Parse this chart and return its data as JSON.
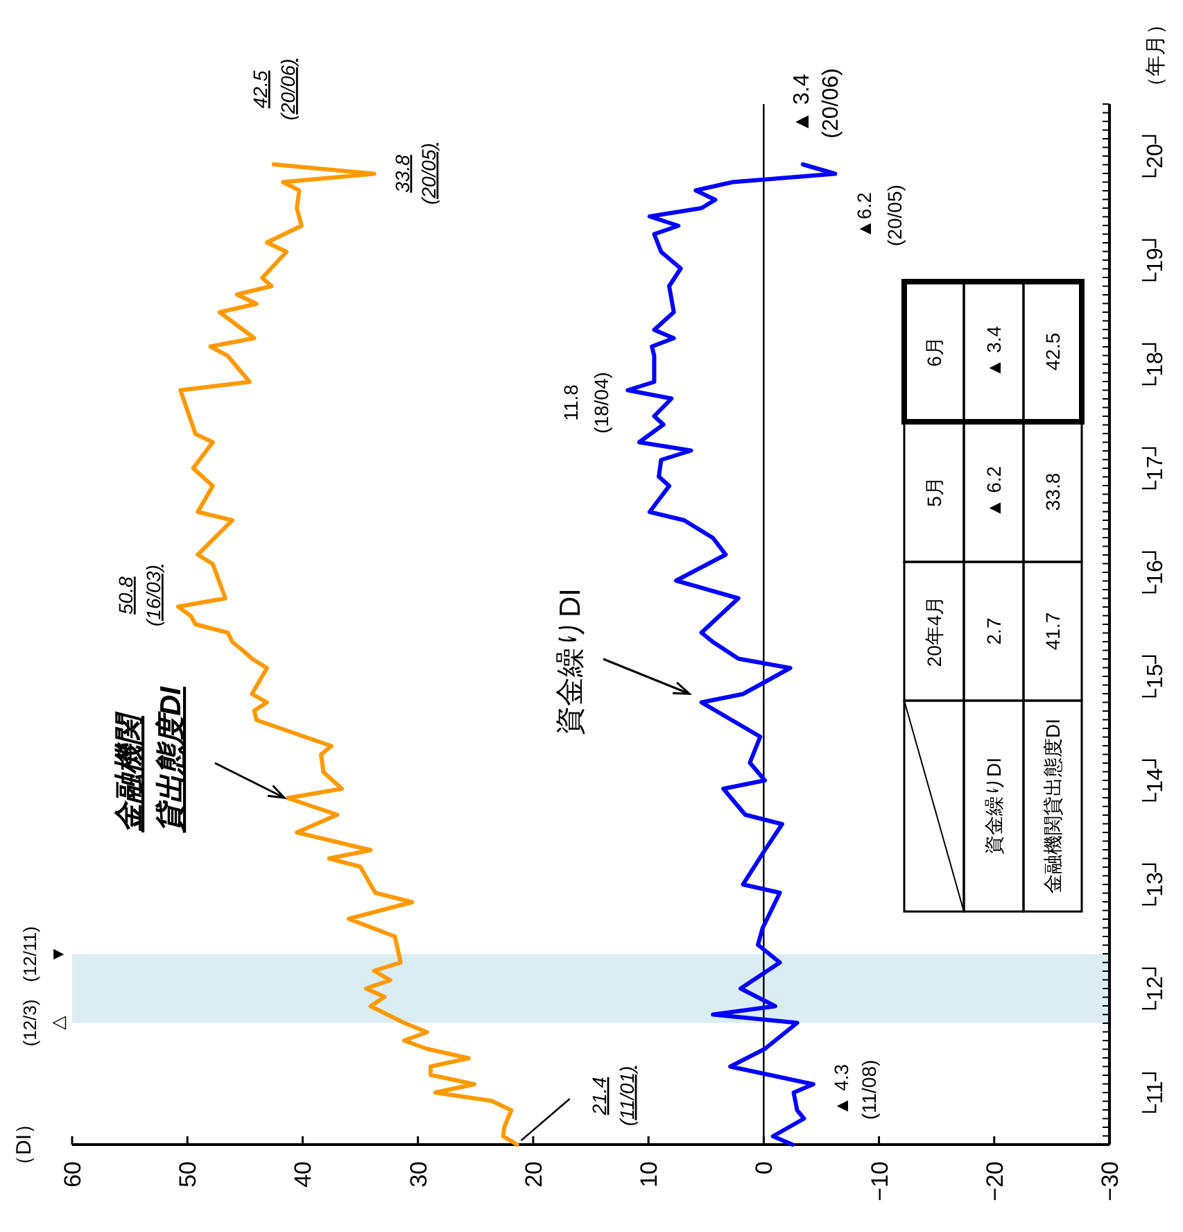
{
  "chart_data": {
    "type": "line",
    "ylabel": "（年月）",
    "xlim": [
      60,
      -30
    ],
    "xticks": [
      60,
      50,
      40,
      30,
      20,
      10,
      0,
      -10,
      -20,
      -30
    ],
    "ylim": [
      11,
      21
    ],
    "yticks": [
      {
        "value": 11.5,
        "label": "└11┘"
      },
      {
        "value": 12.5,
        "label": "└12┘"
      },
      {
        "value": 13.5,
        "label": "└13┘"
      },
      {
        "value": 14.5,
        "label": "└14┘"
      },
      {
        "value": 15.5,
        "label": "└15┘"
      },
      {
        "value": 16.5,
        "label": "└16┘"
      },
      {
        "value": 17.5,
        "label": "└17┘"
      },
      {
        "value": 18.5,
        "label": "└18┘"
      },
      {
        "value": 19.5,
        "label": "└19┘"
      },
      {
        "value": 20.5,
        "label": "└20┘"
      }
    ],
    "series": [
      {
        "name": "金融機関貸出態度DI",
        "color": "#ff9900",
        "x": [
          21.4,
          22.6,
          22.5,
          21.9,
          23.6,
          28.5,
          25.1,
          28.9,
          28.9,
          25.6,
          29.2,
          31.2,
          29.2,
          31.2,
          34.1,
          32.9,
          34.5,
          32.4,
          33.8,
          31.5,
          32.0,
          36.0,
          30.5,
          33.7,
          35.0,
          37.7,
          34.1,
          40.5,
          37.0,
          41.3,
          36.6,
          38.2,
          38.4,
          37.5,
          44.0,
          44.2,
          43.1,
          44.4,
          43.1,
          44.4,
          45.2,
          46.1,
          46.5,
          49.3,
          49.7,
          50.8,
          46.7,
          47.8,
          49.1,
          46.1,
          49.1,
          47.8,
          49.5,
          47.8,
          49.3,
          50.6,
          44.6,
          46.5,
          48.0,
          44.2,
          47.2,
          44.0,
          45.7,
          42.7,
          43.5,
          41.4,
          43.1,
          40.1,
          40.5,
          40.3,
          41.7,
          33.8,
          42.5
        ],
        "values": [
          11,
          11.08,
          11.17,
          11.33,
          11.42,
          11.5,
          11.58,
          11.67,
          11.75,
          11.83,
          11.92,
          12,
          12.08,
          12.17,
          12.33,
          12.42,
          12.5,
          12.58,
          12.67,
          12.75,
          13,
          13.17,
          13.33,
          13.42,
          13.67,
          13.75,
          13.83,
          14,
          14.17,
          14.33,
          14.42,
          14.58,
          14.75,
          14.83,
          15.08,
          15.17,
          15.25,
          15.33,
          15.58,
          15.67,
          15.75,
          15.83,
          15.92,
          16,
          16.08,
          16.17,
          16.25,
          16.58,
          16.67,
          17,
          17.08,
          17.33,
          17.5,
          17.75,
          17.83,
          18.25,
          18.33,
          18.58,
          18.67,
          18.75,
          19,
          19.08,
          19.17,
          19.25,
          19.33,
          19.58,
          19.67,
          19.83,
          20,
          20.17,
          20.25,
          20.33,
          20.42
        ]
      },
      {
        "name": "資金繰りDI",
        "color": "#0000ff",
        "x": [
          -2.5,
          -0.8,
          -3.5,
          -2.9,
          -2.6,
          -4.3,
          2.9,
          -0.1,
          -2.9,
          4.4,
          -1.0,
          2.0,
          -1.4,
          0.5,
          0.1,
          -1.4,
          1.8,
          -0.1,
          -1.6,
          1.6,
          3.5,
          -0.1,
          1.2,
          0.3,
          5.4,
          1.8,
          -2.3,
          2.2,
          4.4,
          5.4,
          2.2,
          7.6,
          3.3,
          4.4,
          6.9,
          9.9,
          8.2,
          9.1,
          8.9,
          6.3,
          10.8,
          8.7,
          9.5,
          8.0,
          11.8,
          9.5,
          9.5,
          9.7,
          7.8,
          9.5,
          7.8,
          8.2,
          7.2,
          8.9,
          9.5,
          7.4,
          9.9,
          5.4,
          4.2,
          5.9,
          2.7,
          -6.2,
          -3.4
        ],
        "values": [
          11,
          11.08,
          11.25,
          11.33,
          11.5,
          11.58,
          11.75,
          11.92,
          12.17,
          12.25,
          12.33,
          12.5,
          12.75,
          12.92,
          13.08,
          13.42,
          13.5,
          13.83,
          14.08,
          14.17,
          14.42,
          14.5,
          14.67,
          14.92,
          15.25,
          15.33,
          15.58,
          15.67,
          15.83,
          15.92,
          16.25,
          16.42,
          16.67,
          16.83,
          17,
          17.08,
          17.33,
          17.42,
          17.58,
          17.67,
          17.75,
          17.92,
          18,
          18.17,
          18.25,
          18.33,
          18.58,
          18.67,
          18.75,
          18.83,
          19,
          19.25,
          19.42,
          19.58,
          19.75,
          19.83,
          19.92,
          20,
          20.08,
          20.17,
          20.25,
          20.33,
          20.42
        ]
      }
    ],
    "ref_lines": [
      {
        "axis": "x",
        "value": 0,
        "color": "#000000"
      }
    ],
    "bands": [
      {
        "axis": "y",
        "from": 12.17,
        "to": 12.83,
        "color": "#daedf3"
      }
    ],
    "annotations": [
      {
        "text": "21.4\n(11/01)",
        "x": 21.4,
        "y": 11
      },
      {
        "text": "50.8\n(16/03)",
        "x": 50.8,
        "y": 16.17
      },
      {
        "text": "33.8\n(20/05)",
        "x": 33.8,
        "y": 20.33
      },
      {
        "text": "42.5\n(20/06)",
        "x": 42.5,
        "y": 20.42
      },
      {
        "text": "▲ 4.3\n(11/08)",
        "x": -4.3,
        "y": 11.58
      },
      {
        "text": "11.8\n(18/04)",
        "x": 11.8,
        "y": 18.25
      },
      {
        "text": "▲6.2\n(20/05)",
        "x": -6.2,
        "y": 20.33
      },
      {
        "text": "▲ 3.4\n(20/06)",
        "x": -3.4,
        "y": 20.42
      },
      "（DI）",
      "(12/3)\n△",
      "(12/11)\n▼",
      "20年4月",
      "5月",
      "6月",
      "資金繰りDI",
      "2.7",
      "▲ 6.2",
      "▲ 3.4",
      "金融機関貸出態度DI",
      "41.7",
      "33.8",
      "42.5"
    ]
  }
}
